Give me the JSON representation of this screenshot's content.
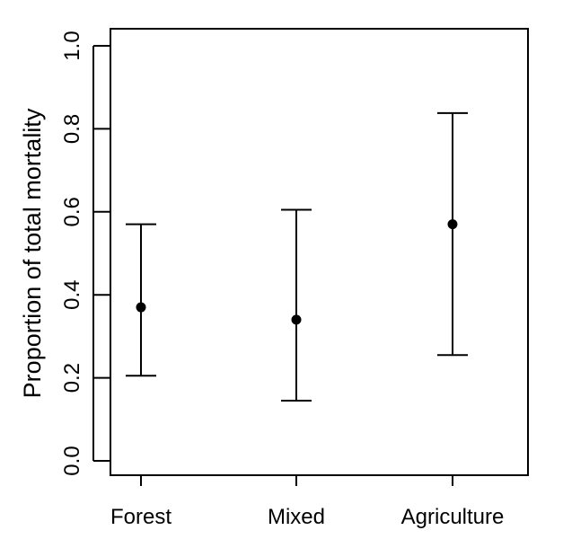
{
  "chart_data": {
    "type": "scatter",
    "title": "",
    "xlabel": "",
    "ylabel": "Proportion of total mortality",
    "categories": [
      "Forest",
      "Mixed",
      "Agriculture"
    ],
    "series": [
      {
        "values": [
          0.37,
          0.34,
          0.57
        ],
        "lower": [
          0.205,
          0.145,
          0.255
        ],
        "upper": [
          0.57,
          0.605,
          0.838
        ]
      }
    ],
    "ylim": [
      0.0,
      1.0
    ],
    "yticks": [
      "0.0",
      "0.2",
      "0.4",
      "0.6",
      "0.8",
      "1.0"
    ],
    "grid": false,
    "error_bars": true
  }
}
